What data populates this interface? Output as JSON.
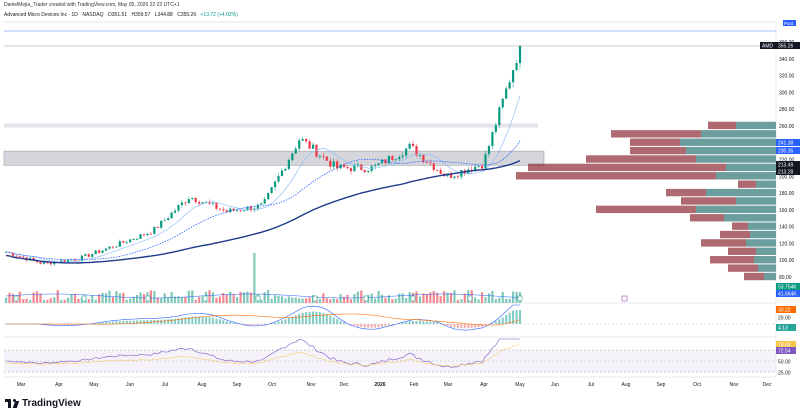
{
  "header": {
    "caption": "DanielMejia_Trader created with TradingView.com, May 05, 2026 22:23 UTC+1",
    "symbol": "Advanced Micro Devices Inc · 1D · NASDAQ",
    "open": "O351.51",
    "high": "H359.57",
    "low": "L344.88",
    "close": "C355.26",
    "change": "+13.72 (+4.02%)",
    "change_color": "#089981"
  },
  "price_scale": {
    "ticks": [
      "360.00",
      "340.00",
      "320.00",
      "300.00",
      "280.00",
      "260.00",
      "240.00",
      "220.00",
      "200.00",
      "180.00",
      "160.00",
      "140.00",
      "120.00",
      "100.00",
      "80.00"
    ],
    "tags": [
      {
        "label": "AMD",
        "value": "355.26",
        "color": "#131722"
      },
      {
        "label": "",
        "value": "241.38",
        "color": "#2962ff"
      },
      {
        "label": "",
        "value": "230.35",
        "color": "#2962ff"
      },
      {
        "label": "",
        "value": "213.49",
        "color": "#131722"
      },
      {
        "label": "",
        "value": "213.28",
        "color": "#131722"
      }
    ],
    "top_tag": "Post"
  },
  "volume_scale": {
    "tags": [
      {
        "value": "53.754K",
        "color": "#089981"
      },
      {
        "value": "41.664K",
        "color": "#2962ff"
      }
    ]
  },
  "macd_scale": {
    "tags": [
      {
        "value": "30.22",
        "color": "#ff6d00"
      },
      {
        "value": "20.00",
        "color": ""
      },
      {
        "value": "4.13",
        "color": "#26a69a"
      }
    ]
  },
  "rsi_scale": {
    "tags": [
      {
        "value": "78.84",
        "color": "#f7c548"
      },
      {
        "value": "72.54",
        "color": "#7e57c2"
      },
      {
        "value": "50.00",
        "color": ""
      },
      {
        "value": "25.00",
        "color": ""
      }
    ]
  },
  "time_axis": {
    "labels": [
      "Mar",
      "Apr",
      "May",
      "Jun",
      "Jul",
      "Aug",
      "Sep",
      "Oct",
      "Nov",
      "Dec",
      "2026",
      "Feb",
      "Mar",
      "Apr",
      "May",
      "Jun",
      "Jul",
      "Aug",
      "Sep",
      "Oct",
      "Nov",
      "Dec"
    ]
  },
  "branding": {
    "text": "TradingView"
  },
  "colors": {
    "up": "#089981",
    "down": "#f23645",
    "ma_fast": "#5b9cf6",
    "ma_slow": "#1e3a8a",
    "vp_up": "#3a7d7c",
    "vp_down": "#8b2a35"
  },
  "chart_data": {
    "type": "candlestick",
    "title": "Advanced Micro Devices Inc · 1D · NASDAQ",
    "ylim": [
      70,
      370
    ],
    "x_range": [
      "Mar",
      "Dec"
    ],
    "last_close": 355.26,
    "close_path": [
      {
        "t": "Mar",
        "c": 110
      },
      {
        "t": "Apr",
        "c": 96
      },
      {
        "t": "May",
        "c": 102
      },
      {
        "t": "Jun",
        "c": 118
      },
      {
        "t": "Jul",
        "c": 135
      },
      {
        "t": "Aug",
        "c": 176
      },
      {
        "t": "Sep",
        "c": 158
      },
      {
        "t": "Oct",
        "c": 165
      },
      {
        "t": "Nov",
        "c": 245
      },
      {
        "t": "Dec",
        "c": 210
      },
      {
        "t": "2026",
        "c": 210
      },
      {
        "t": "Feb",
        "c": 235
      },
      {
        "t": "Mar",
        "c": 200
      },
      {
        "t": "Apr",
        "c": 215
      },
      {
        "t": "May",
        "c": 355.26
      }
    ],
    "horizontal_zones": [
      {
        "from": 258,
        "to": 263
      },
      {
        "from": 213,
        "to": 230
      }
    ],
    "volume_profile": [
      {
        "price": 80,
        "up": 12,
        "down": 20
      },
      {
        "price": 90,
        "up": 18,
        "down": 30
      },
      {
        "price": 100,
        "up": 22,
        "down": 44
      },
      {
        "price": 110,
        "up": 20,
        "down": 28
      },
      {
        "price": 120,
        "up": 30,
        "down": 45
      },
      {
        "price": 130,
        "up": 26,
        "down": 30
      },
      {
        "price": 140,
        "up": 28,
        "down": 16
      },
      {
        "price": 150,
        "up": 52,
        "down": 34
      },
      {
        "price": 160,
        "up": 80,
        "down": 100
      },
      {
        "price": 170,
        "up": 40,
        "down": 55
      },
      {
        "price": 180,
        "up": 70,
        "down": 40
      },
      {
        "price": 190,
        "up": 20,
        "down": 18
      },
      {
        "price": 200,
        "up": 60,
        "down": 200
      },
      {
        "price": 210,
        "up": 50,
        "down": 198
      },
      {
        "price": 220,
        "up": 80,
        "down": 110
      },
      {
        "price": 230,
        "up": 90,
        "down": 56
      },
      {
        "price": 240,
        "up": 96,
        "down": 50
      },
      {
        "price": 250,
        "up": 75,
        "down": 90
      },
      {
        "price": 260,
        "up": 40,
        "down": 28
      }
    ]
  }
}
